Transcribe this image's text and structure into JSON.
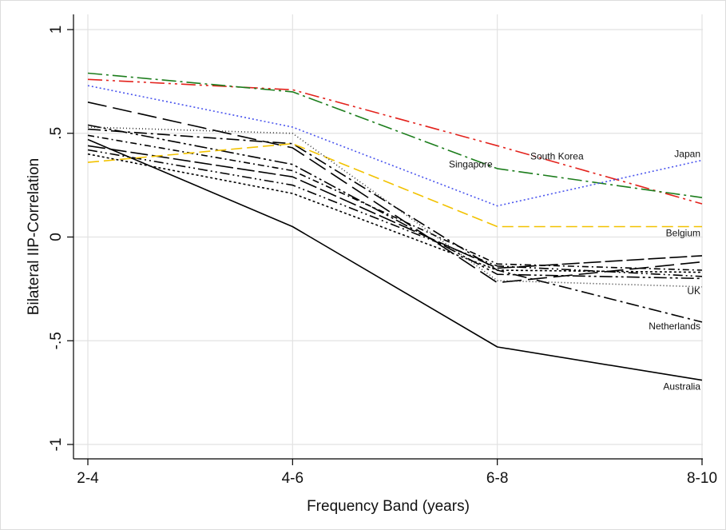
{
  "chart_data": {
    "type": "line",
    "title": "",
    "xlabel": "Frequency Band (years)",
    "ylabel": "Bilateral IIP-Correlation",
    "categories": [
      "2-4",
      "4-6",
      "6-8",
      "8-10"
    ],
    "ylim": [
      -1,
      1
    ],
    "yticks": [
      {
        "value": 1,
        "label": "1"
      },
      {
        "value": 0.5,
        "label": ".5"
      },
      {
        "value": 0,
        "label": "0"
      },
      {
        "value": -0.5,
        "label": "-.5"
      },
      {
        "value": -1,
        "label": "-1"
      }
    ],
    "grid": true,
    "legend": "none",
    "series": [
      {
        "name": "South Korea",
        "values": [
          0.76,
          0.71,
          0.44,
          0.16
        ],
        "color": "#e3221c",
        "dash": "18,5,3,5,3,5"
      },
      {
        "name": "Singapore",
        "values": [
          0.79,
          0.7,
          0.33,
          0.19
        ],
        "color": "#1c7d1c",
        "dash": "18,5,3,5"
      },
      {
        "name": "Japan",
        "values": [
          0.73,
          0.53,
          0.15,
          0.37
        ],
        "color": "#4a55ee",
        "dash": "2,3"
      },
      {
        "name": "Belgium",
        "values": [
          0.36,
          0.45,
          0.05,
          0.05
        ],
        "color": "#f2c200",
        "dash": "14,6"
      },
      {
        "name": "UK",
        "values": [
          0.53,
          0.5,
          -0.21,
          -0.24
        ],
        "color": "#333333",
        "dash": "1,3"
      },
      {
        "name": "Netherlands",
        "values": [
          0.52,
          0.45,
          -0.16,
          -0.41
        ],
        "color": "#000000",
        "dash": "16,5,3,5"
      },
      {
        "name": "Australia",
        "values": [
          0.47,
          0.05,
          -0.53,
          -0.69
        ],
        "color": "#000000",
        "dash": ""
      },
      {
        "values": [
          0.65,
          0.43,
          -0.22,
          -0.12
        ],
        "color": "#000000",
        "dash": "24,8"
      },
      {
        "values": [
          0.54,
          0.35,
          -0.18,
          -0.2
        ],
        "color": "#000000",
        "dash": "16,4,3,4,3,4"
      },
      {
        "values": [
          0.49,
          0.32,
          -0.13,
          -0.16
        ],
        "color": "#000000",
        "dash": "8,4,2,4"
      },
      {
        "values": [
          0.44,
          0.29,
          -0.15,
          -0.09
        ],
        "color": "#000000",
        "dash": "22,5"
      },
      {
        "values": [
          0.42,
          0.25,
          -0.14,
          -0.19
        ],
        "color": "#000000",
        "dash": "12,4,2,4,2,4"
      },
      {
        "values": [
          0.4,
          0.21,
          -0.16,
          -0.17
        ],
        "color": "#000000",
        "dash": "3,3"
      }
    ],
    "annotations": [
      {
        "text": "South Korea",
        "x": "6-8",
        "y": 0.39
      },
      {
        "text": "Singapore",
        "x": "6-8",
        "y": 0.35
      },
      {
        "text": "Japan",
        "x": "8-10",
        "y": 0.4
      },
      {
        "text": "Belgium",
        "x": "8-10",
        "y": 0.02
      },
      {
        "text": "UK",
        "x": "8-10",
        "y": -0.26
      },
      {
        "text": "Netherlands",
        "x": "8-10",
        "y": -0.43
      },
      {
        "text": "Australia",
        "x": "8-10",
        "y": -0.72
      }
    ]
  }
}
